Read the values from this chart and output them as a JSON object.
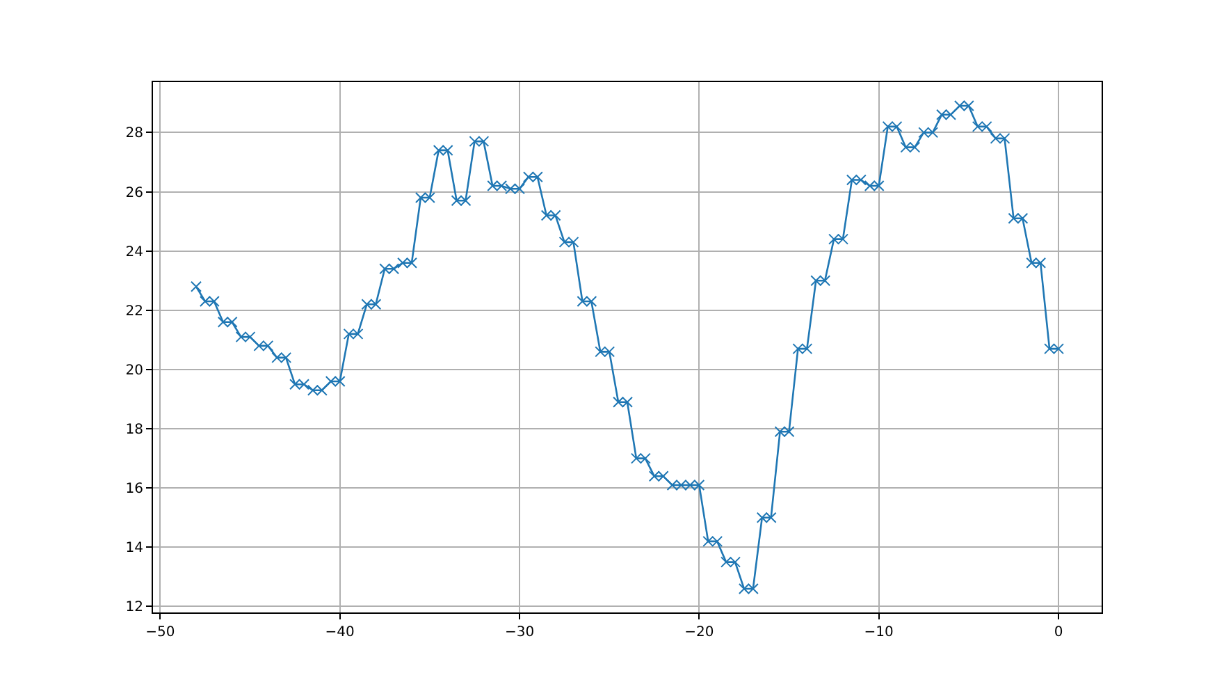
{
  "chart_data": {
    "type": "line",
    "x": [
      -48,
      -47.5,
      -47,
      -46.5,
      -46,
      -45.5,
      -45,
      -44.5,
      -44,
      -43.5,
      -43,
      -42.5,
      -42,
      -41.5,
      -41,
      -40.5,
      -40,
      -39.5,
      -39,
      -38.5,
      -38,
      -37.5,
      -37,
      -36.5,
      -36,
      -35.5,
      -35,
      -34.5,
      -34,
      -33.5,
      -33,
      -32.5,
      -32,
      -31.5,
      -31,
      -30.5,
      -30,
      -29.5,
      -29,
      -28.5,
      -28,
      -27.5,
      -27,
      -26.5,
      -26,
      -25.5,
      -25,
      -24.5,
      -24,
      -23.5,
      -23,
      -22.5,
      -22,
      -21.5,
      -21,
      -20.5,
      -20,
      -19.5,
      -19,
      -18.5,
      -18,
      -17.5,
      -17,
      -16.5,
      -16,
      -15.5,
      -15,
      -14.5,
      -14,
      -13.5,
      -13,
      -12.5,
      -12,
      -11.5,
      -11,
      -10.5,
      -10,
      -9.5,
      -9,
      -8.5,
      -8,
      -7.5,
      -7,
      -6.5,
      -6,
      -5.5,
      -5,
      -4.5,
      -4,
      -3.5,
      -3,
      -2.5,
      -2,
      -1.5,
      -1,
      -0.5,
      0
    ],
    "series": [
      {
        "color": "#1f77b4",
        "values": [
          22.8,
          22.3,
          22.3,
          21.6,
          21.6,
          21.1,
          21.1,
          20.8,
          20.8,
          20.4,
          20.4,
          19.5,
          19.5,
          19.3,
          19.3,
          19.6,
          19.6,
          21.2,
          21.2,
          22.2,
          22.2,
          23.4,
          23.4,
          23.6,
          23.6,
          25.8,
          25.8,
          27.4,
          27.4,
          25.7,
          25.7,
          27.7,
          27.7,
          26.2,
          26.2,
          26.1,
          26.1,
          26.5,
          26.5,
          25.2,
          25.2,
          24.3,
          24.3,
          22.3,
          22.3,
          20.6,
          20.6,
          18.9,
          18.9,
          17.0,
          17.0,
          16.4,
          16.4,
          16.1,
          16.1,
          16.1,
          16.1,
          14.2,
          14.2,
          13.5,
          13.5,
          12.6,
          12.6,
          15.0,
          15.0,
          17.9,
          17.9,
          20.7,
          20.7,
          23.0,
          23.0,
          24.4,
          24.4,
          26.4,
          26.4,
          26.2,
          26.2,
          28.2,
          28.2,
          27.5,
          27.5,
          28.0,
          28.0,
          28.6,
          28.6,
          28.9,
          28.9,
          28.2,
          28.2,
          27.8,
          27.8,
          25.1,
          25.1,
          23.6,
          23.6,
          20.7,
          20.7
        ]
      }
    ],
    "xlim": [
      -50.4,
      2.4
    ],
    "ylim": [
      11.8,
      29.7
    ],
    "xticks": [
      {
        "value": -50,
        "label": "−50"
      },
      {
        "value": -40,
        "label": "−40"
      },
      {
        "value": -30,
        "label": "−30"
      },
      {
        "value": -20,
        "label": "−20"
      },
      {
        "value": -10,
        "label": "−10"
      },
      0
    ],
    "yticks": [
      12,
      14,
      16,
      18,
      20,
      22,
      24,
      26,
      28
    ],
    "grid": true,
    "marker": "cross",
    "line_style": "solid"
  }
}
